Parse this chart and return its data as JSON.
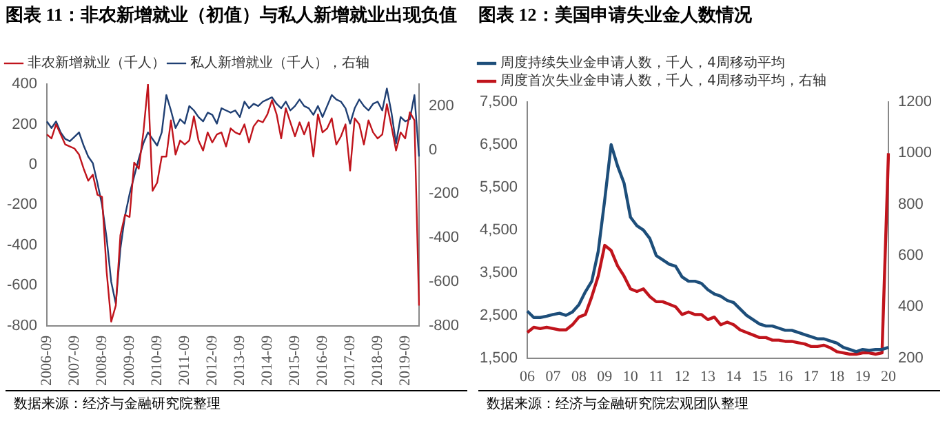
{
  "chart_data": [
    {
      "type": "line",
      "title": "图表 11：非农新增就业（初值）与私人新增就业出现负值",
      "categories": [
        "2006-09",
        null,
        null,
        null,
        null,
        null,
        "2007-09",
        null,
        null,
        null,
        null,
        null,
        "2008-09",
        null,
        null,
        null,
        null,
        null,
        "2009-09",
        null,
        null,
        null,
        null,
        null,
        "2010-09",
        null,
        null,
        null,
        null,
        null,
        "2011-09",
        null,
        null,
        null,
        null,
        null,
        "2012-09",
        null,
        null,
        null,
        null,
        null,
        "2013-09",
        null,
        null,
        null,
        null,
        null,
        "2014-09",
        null,
        null,
        null,
        null,
        null,
        "2015-09",
        null,
        null,
        null,
        null,
        null,
        "2016-09",
        null,
        null,
        null,
        null,
        null,
        "2017-09",
        null,
        null,
        null,
        null,
        null,
        "2018-09",
        null,
        null,
        null,
        null,
        null,
        "2019-09",
        null,
        null,
        null
      ],
      "series": [
        {
          "name": "非农新增就业（千人）",
          "color": "#c0141c",
          "values": [
            150,
            130,
            200,
            150,
            100,
            90,
            80,
            50,
            -20,
            -80,
            -50,
            -150,
            -160,
            -530,
            -780,
            -700,
            -350,
            -250,
            -260,
            10,
            -20,
            160,
            400,
            -130,
            -90,
            40,
            40,
            220,
            50,
            120,
            100,
            120,
            240,
            120,
            70,
            160,
            110,
            150,
            160,
            90,
            180,
            160,
            150,
            200,
            110,
            190,
            220,
            210,
            250,
            320,
            250,
            130,
            280,
            210,
            140,
            210,
            150,
            210,
            40,
            250,
            160,
            180,
            230,
            100,
            140,
            200,
            -30,
            230,
            200,
            100,
            220,
            160,
            130,
            150,
            300,
            190,
            70,
            160,
            130,
            260,
            220,
            -700
          ]
        },
        {
          "name": "私人新增就业（千人），右轴",
          "color": "#1f3f73",
          "axis": "y2",
          "values": [
            130,
            100,
            130,
            80,
            50,
            40,
            60,
            80,
            20,
            -30,
            -60,
            -150,
            -250,
            -400,
            -600,
            -700,
            -450,
            -300,
            -200,
            -120,
            -40,
            30,
            80,
            50,
            20,
            80,
            250,
            180,
            100,
            140,
            120,
            200,
            180,
            150,
            130,
            170,
            160,
            120,
            190,
            180,
            170,
            180,
            150,
            220,
            190,
            210,
            200,
            220,
            230,
            240,
            210,
            190,
            220,
            180,
            200,
            230,
            200,
            190,
            160,
            200,
            150,
            200,
            250,
            230,
            220,
            190,
            120,
            190,
            230,
            200,
            180,
            210,
            220,
            180,
            280,
            170,
            30,
            150,
            130,
            140,
            250,
            -30
          ]
        }
      ],
      "ylim": [
        -800,
        400
      ],
      "yticks": [
        -800,
        -600,
        -400,
        -200,
        0,
        200,
        400
      ],
      "y2lim": [
        -800,
        300
      ],
      "y2ticks": [
        -800,
        -600,
        -400,
        -200,
        0,
        200
      ],
      "legend": "top",
      "grid": false,
      "annotations": [
        "数据来源：经济与金融研究院整理"
      ]
    },
    {
      "type": "line",
      "title": "图表 12：美国申请失业金人数情况",
      "categories": [
        "06",
        null,
        null,
        null,
        "07",
        null,
        null,
        null,
        "08",
        null,
        null,
        null,
        "09",
        null,
        null,
        null,
        "10",
        null,
        null,
        null,
        "11",
        null,
        null,
        null,
        "12",
        null,
        null,
        null,
        "13",
        null,
        null,
        null,
        "14",
        null,
        null,
        null,
        "15",
        null,
        null,
        null,
        "16",
        null,
        null,
        null,
        "17",
        null,
        null,
        null,
        "18",
        null,
        null,
        null,
        "19",
        null,
        null,
        null,
        "20"
      ],
      "series": [
        {
          "name": "周度持续失业金申请人数，千人，4周移动平均",
          "color": "#1d4e7a",
          "values": [
            2600,
            2450,
            2450,
            2480,
            2520,
            2550,
            2500,
            2580,
            2750,
            3050,
            3300,
            4000,
            5200,
            6500,
            6000,
            5600,
            4800,
            4600,
            4500,
            4300,
            3900,
            3800,
            3700,
            3650,
            3400,
            3300,
            3300,
            3250,
            3100,
            3000,
            2950,
            2850,
            2800,
            2650,
            2500,
            2400,
            2300,
            2250,
            2250,
            2200,
            2150,
            2150,
            2100,
            2050,
            2000,
            1950,
            1950,
            1900,
            1850,
            1750,
            1700,
            1650,
            1700,
            1680,
            1700,
            1700,
            1750
          ]
        },
        {
          "name": "周度首次失业金申请人数，千人，4周移动平均，右轴",
          "color": "#c0141c",
          "axis": "y2",
          "values": [
            300,
            320,
            315,
            320,
            315,
            310,
            310,
            330,
            360,
            370,
            440,
            520,
            640,
            620,
            560,
            520,
            470,
            460,
            470,
            440,
            420,
            420,
            410,
            400,
            370,
            380,
            370,
            370,
            350,
            360,
            330,
            340,
            330,
            310,
            300,
            290,
            280,
            280,
            270,
            270,
            265,
            265,
            260,
            255,
            245,
            245,
            250,
            240,
            225,
            220,
            215,
            215,
            220,
            220,
            215,
            220,
            1000
          ]
        }
      ],
      "ylim": [
        1500,
        7500
      ],
      "yticks": [
        {
          "value": 1500,
          "label": "1,500"
        },
        {
          "value": 2500,
          "label": "2,500"
        },
        {
          "value": 3500,
          "label": "3,500"
        },
        {
          "value": 4500,
          "label": "4,500"
        },
        {
          "value": 5500,
          "label": "5,500"
        },
        {
          "value": 6500,
          "label": "6,500"
        },
        {
          "value": 7500,
          "label": "7,500"
        }
      ],
      "y2lim": [
        200,
        1200
      ],
      "y2ticks": [
        200,
        400,
        600,
        800,
        1000,
        1200
      ],
      "legend": "top",
      "grid": false,
      "annotations": [
        "数据来源：经济与金融研究院宏观团队整理"
      ]
    }
  ]
}
